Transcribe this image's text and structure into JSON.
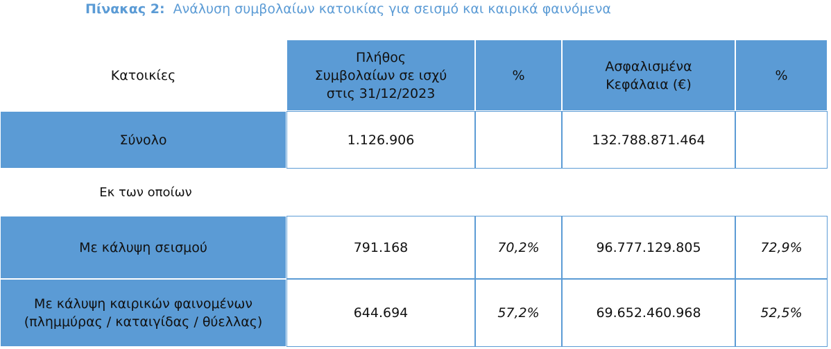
{
  "title": {
    "label": "Πίνακας 2:",
    "text": "Ανάλυση συμβολαίων κατοικίας για σεισμό και καιρικά φαινόμενα"
  },
  "table": {
    "header": [
      [
        "Κατοικίες"
      ],
      [
        "Πλήθος",
        "Συμβολαίων σε ισχύ",
        "στις 31/12/2023"
      ],
      [
        "%"
      ],
      [
        "Ασφαλισμένα",
        "Κεφάλαια (€)"
      ],
      [
        "%"
      ]
    ],
    "total": {
      "label": [
        "Σύνολο"
      ],
      "contracts": "1.126.906",
      "capital": "132.788.871.464"
    },
    "subheading": "Εκ των οποίων",
    "rows": [
      {
        "label": [
          "Με κάλυψη σεισμού"
        ],
        "contracts": "791.168",
        "contracts_pct": "70,2%",
        "capital": "96.777.129.805",
        "capital_pct": "72,9%"
      },
      {
        "label": [
          "Με κάλυψη καιρικών φαινομένων",
          "(πλημμύρας / καταιγίδας / θύελλας)"
        ],
        "contracts": "644.694",
        "contracts_pct": "57,2%",
        "capital": "69.652.460.968",
        "capital_pct": "52,5%"
      }
    ]
  }
}
